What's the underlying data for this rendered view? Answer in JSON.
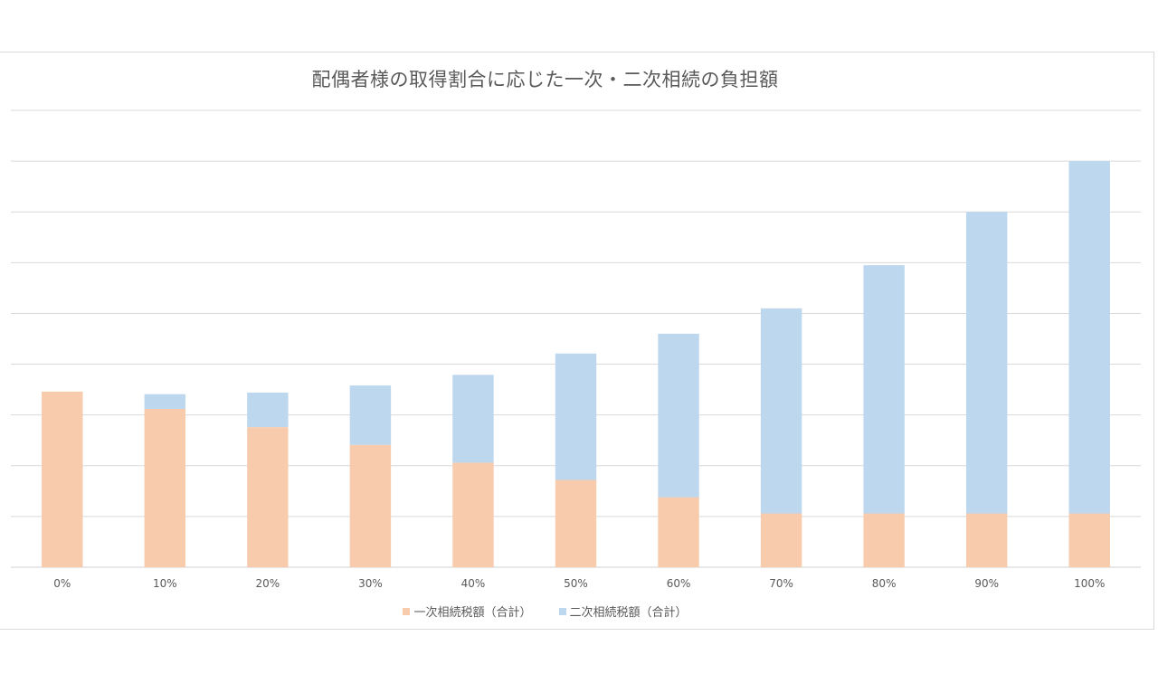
{
  "chart_data": {
    "type": "bar",
    "stacked": true,
    "title": "配偶者様の取得割合に応じた一次・二次相続の負担額",
    "xlabel": "",
    "ylabel": "",
    "categories": [
      "0%",
      "10%",
      "20%",
      "30%",
      "40%",
      "50%",
      "60%",
      "70%",
      "80%",
      "90%",
      "100%"
    ],
    "series": [
      {
        "name": "一次相続税額（合計）",
        "color": "#f8cbad",
        "values": [
          3.46,
          3.12,
          2.76,
          2.41,
          2.06,
          1.72,
          1.38,
          1.06,
          1.06,
          1.06,
          1.06
        ]
      },
      {
        "name": "二次相続税額（合計）",
        "color": "#bdd7ee",
        "values": [
          0.0,
          0.29,
          0.68,
          1.17,
          1.73,
          2.49,
          3.22,
          4.04,
          4.89,
          5.94,
          6.94
        ]
      }
    ],
    "ylim": [
      0,
      9
    ],
    "grid": true,
    "y_tick_labels_shown": false,
    "legend_position": "bottom"
  }
}
